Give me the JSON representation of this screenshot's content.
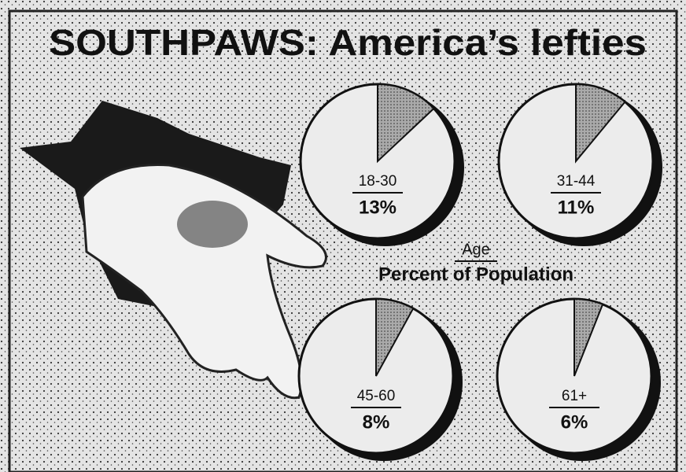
{
  "title": "SOUTHPAWS: America’s lefties",
  "key": {
    "top": "Age",
    "bottom": "Percent of Population"
  },
  "chart_data": [
    {
      "type": "pie",
      "categories": [
        "18-30"
      ],
      "values": [
        13
      ],
      "value_labels": [
        "13%"
      ]
    },
    {
      "type": "pie",
      "categories": [
        "31-44"
      ],
      "values": [
        11
      ],
      "value_labels": [
        "11%"
      ]
    },
    {
      "type": "pie",
      "categories": [
        "45-60"
      ],
      "values": [
        8
      ],
      "value_labels": [
        "8%"
      ]
    },
    {
      "type": "pie",
      "categories": [
        "61+"
      ],
      "values": [
        6
      ],
      "value_labels": [
        "6%"
      ]
    }
  ]
}
